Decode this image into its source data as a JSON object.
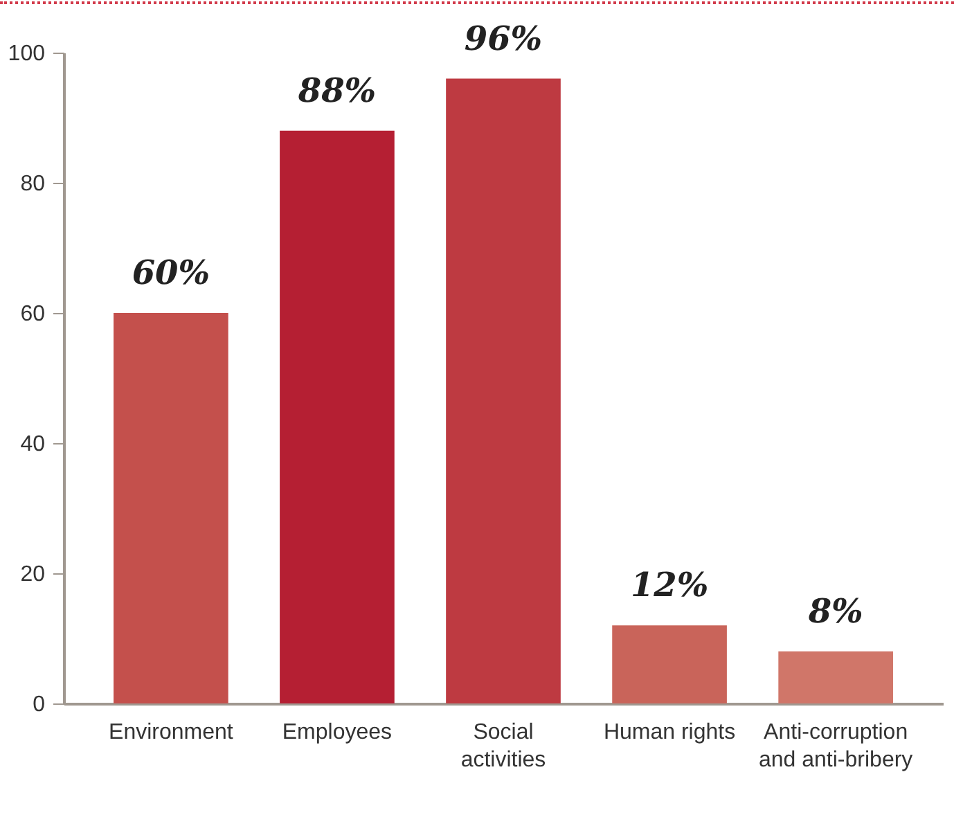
{
  "chart_data": {
    "type": "bar",
    "categories": [
      "Environment",
      "Employees",
      "Social activities",
      "Human rights",
      "Anti-corruption and anti-bribery"
    ],
    "values": [
      60,
      88,
      96,
      12,
      8
    ],
    "colors": [
      "#c4504c",
      "#b51f33",
      "#be3a41",
      "#c9645a",
      "#d07669"
    ],
    "value_labels": [
      "60%",
      "88%",
      "96%",
      "12%",
      "8%"
    ],
    "ylim": [
      0,
      100
    ],
    "yticks": [
      0,
      20,
      40,
      60,
      80,
      100
    ],
    "grid": false
  }
}
